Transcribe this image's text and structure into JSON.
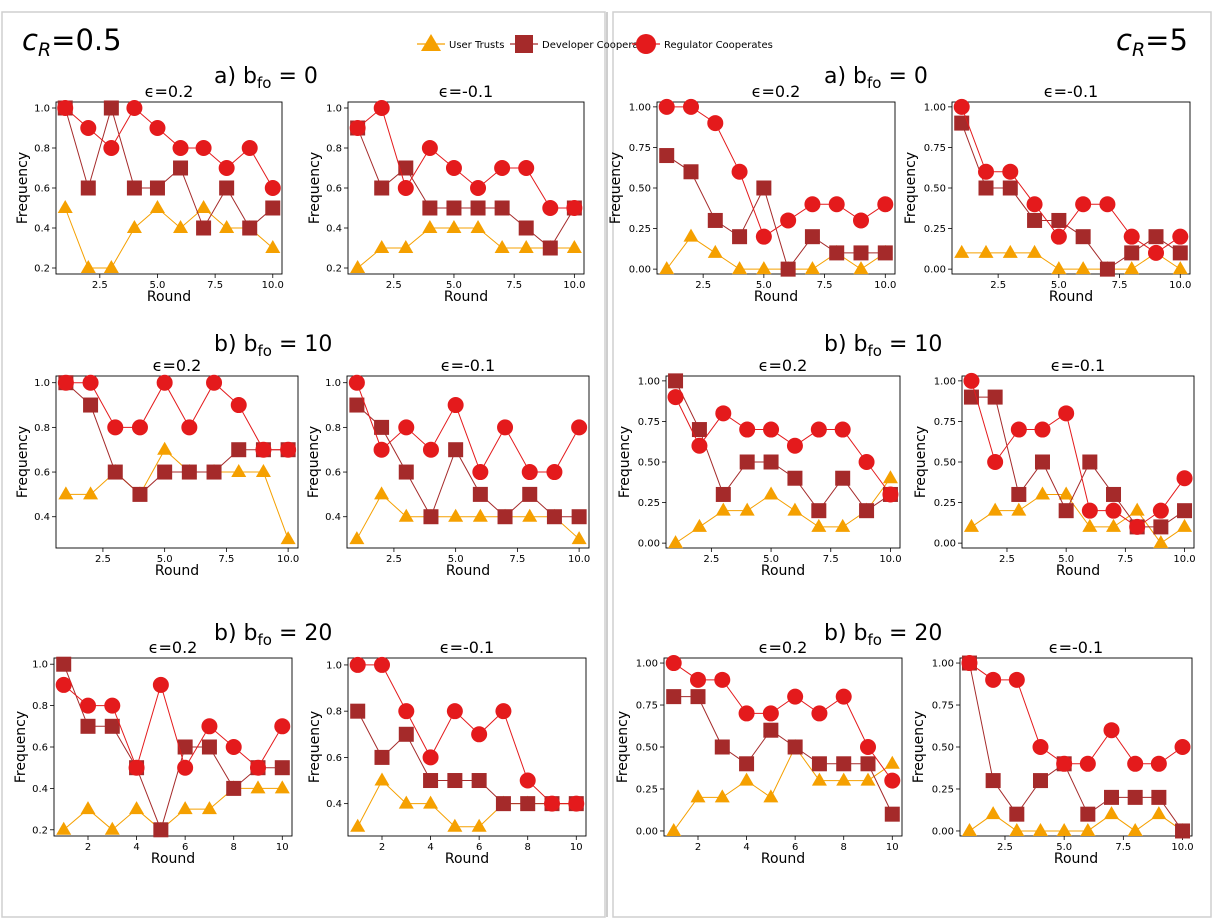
{
  "legend": {
    "items": [
      {
        "label": "User Trusts",
        "marker": "triangle",
        "color": "#f5a000"
      },
      {
        "label": "Developer Cooperates",
        "marker": "square",
        "color": "#a52a2a"
      },
      {
        "label": "Regulator Cooperates",
        "marker": "circle",
        "color": "#e41a1c"
      }
    ]
  },
  "colors": {
    "user": "#f5a000",
    "developer": "#a52a2a",
    "regulator": "#e41a1c"
  },
  "columns": [
    {
      "cr_label": "c",
      "cr_sub": "R",
      "cr_value": "=0.5"
    },
    {
      "cr_label": "c",
      "cr_sub": "R",
      "cr_value": "=5"
    }
  ],
  "row_titles": [
    {
      "prefix": "a) b",
      "sub": "fo",
      "suffix": " = 0"
    },
    {
      "prefix": "b) b",
      "sub": "fo",
      "suffix": " = 10"
    },
    {
      "prefix": "b) b",
      "sub": "fo",
      "suffix": " = 20"
    }
  ],
  "chart_data": [
    {
      "type": "line",
      "panel": "cR=0.5, bfo=0, eps=0.2",
      "title": "ϵ=0.2",
      "xlabel": "Round",
      "ylabel": "Frequency",
      "xlim": [
        0.6,
        10.4
      ],
      "ylim": [
        0.17,
        1.03
      ],
      "xticks": [
        2.5,
        5.0,
        7.5,
        10.0
      ],
      "xtick_labels": [
        "2.5",
        "5.0",
        "7.5",
        "10.0"
      ],
      "yticks": [
        0.2,
        0.4,
        0.6,
        0.8,
        1.0
      ],
      "ytick_labels": [
        "0.2",
        "0.4",
        "0.6",
        "0.8",
        "1.0"
      ],
      "x": [
        1,
        2,
        3,
        4,
        5,
        6,
        7,
        8,
        9,
        10
      ],
      "series": [
        {
          "name": "User Trusts",
          "values": [
            0.5,
            0.2,
            0.2,
            0.4,
            0.5,
            0.4,
            0.5,
            0.4,
            0.4,
            0.3
          ]
        },
        {
          "name": "Developer Cooperates",
          "values": [
            1.0,
            0.6,
            1.0,
            0.6,
            0.6,
            0.7,
            0.4,
            0.6,
            0.4,
            0.5
          ]
        },
        {
          "name": "Regulator Cooperates",
          "values": [
            1.0,
            0.9,
            0.8,
            1.0,
            0.9,
            0.8,
            0.8,
            0.7,
            0.8,
            0.6
          ]
        }
      ]
    },
    {
      "type": "line",
      "panel": "cR=0.5, bfo=0, eps=-0.1",
      "title": "ϵ=-0.1",
      "xlabel": "Round",
      "ylabel": "Frequency",
      "xlim": [
        0.6,
        10.4
      ],
      "ylim": [
        0.17,
        1.03
      ],
      "xticks": [
        2.5,
        5.0,
        7.5,
        10.0
      ],
      "xtick_labels": [
        "2.5",
        "5.0",
        "7.5",
        "10.0"
      ],
      "yticks": [
        0.2,
        0.4,
        0.6,
        0.8,
        1.0
      ],
      "ytick_labels": [
        "0.2",
        "0.4",
        "0.6",
        "0.8",
        "1.0"
      ],
      "x": [
        1,
        2,
        3,
        4,
        5,
        6,
        7,
        8,
        9,
        10
      ],
      "series": [
        {
          "name": "User Trusts",
          "values": [
            0.2,
            0.3,
            0.3,
            0.4,
            0.4,
            0.4,
            0.3,
            0.3,
            0.3,
            0.3
          ]
        },
        {
          "name": "Developer Cooperates",
          "values": [
            0.9,
            0.6,
            0.7,
            0.5,
            0.5,
            0.5,
            0.5,
            0.4,
            0.3,
            0.5
          ]
        },
        {
          "name": "Regulator Cooperates",
          "values": [
            0.9,
            1.0,
            0.6,
            0.8,
            0.7,
            0.6,
            0.7,
            0.7,
            0.5,
            0.5
          ]
        }
      ]
    },
    {
      "type": "line",
      "panel": "cR=5, bfo=0, eps=0.2",
      "title": "ϵ=0.2",
      "xlabel": "Round",
      "ylabel": "Frequency",
      "xlim": [
        0.6,
        10.4
      ],
      "ylim": [
        -0.03,
        1.03
      ],
      "xticks": [
        2.5,
        5.0,
        7.5,
        10.0
      ],
      "xtick_labels": [
        "2.5",
        "5.0",
        "7.5",
        "10.0"
      ],
      "yticks": [
        0.0,
        0.25,
        0.5,
        0.75,
        1.0
      ],
      "ytick_labels": [
        "0.00",
        "0.25",
        "0.50",
        "0.75",
        "1.00"
      ],
      "x": [
        1,
        2,
        3,
        4,
        5,
        6,
        7,
        8,
        9,
        10
      ],
      "series": [
        {
          "name": "User Trusts",
          "values": [
            0.0,
            0.2,
            0.1,
            0.0,
            0.0,
            0.0,
            0.0,
            0.1,
            0.0,
            0.1
          ]
        },
        {
          "name": "Developer Cooperates",
          "values": [
            0.7,
            0.6,
            0.3,
            0.2,
            0.5,
            0.0,
            0.2,
            0.1,
            0.1,
            0.1
          ]
        },
        {
          "name": "Regulator Cooperates",
          "values": [
            1.0,
            1.0,
            0.9,
            0.6,
            0.2,
            0.3,
            0.4,
            0.4,
            0.3,
            0.4
          ]
        }
      ]
    },
    {
      "type": "line",
      "panel": "cR=5, bfo=0, eps=-0.1",
      "title": "ϵ=-0.1",
      "xlabel": "Round",
      "ylabel": "Frequency",
      "xlim": [
        0.6,
        10.4
      ],
      "ylim": [
        -0.03,
        1.03
      ],
      "xticks": [
        2.5,
        5.0,
        7.5,
        10.0
      ],
      "xtick_labels": [
        "2.5",
        "5.0",
        "7.5",
        "10.0"
      ],
      "yticks": [
        0.0,
        0.25,
        0.5,
        0.75,
        1.0
      ],
      "ytick_labels": [
        "0.00",
        "0.25",
        "0.50",
        "0.75",
        "1.00"
      ],
      "x": [
        1,
        2,
        3,
        4,
        5,
        6,
        7,
        8,
        9,
        10
      ],
      "series": [
        {
          "name": "User Trusts",
          "values": [
            0.1,
            0.1,
            0.1,
            0.1,
            0.0,
            0.0,
            0.0,
            0.0,
            0.1,
            0.0
          ]
        },
        {
          "name": "Developer Cooperates",
          "values": [
            0.9,
            0.5,
            0.5,
            0.3,
            0.3,
            0.2,
            0.0,
            0.1,
            0.2,
            0.1
          ]
        },
        {
          "name": "Regulator Cooperates",
          "values": [
            1.0,
            0.6,
            0.6,
            0.4,
            0.2,
            0.4,
            0.4,
            0.2,
            0.1,
            0.2
          ]
        }
      ]
    },
    {
      "type": "line",
      "panel": "cR=0.5, bfo=10, eps=0.2",
      "title": "ϵ=0.2",
      "xlabel": "Round",
      "ylabel": "Frequency",
      "xlim": [
        0.6,
        10.4
      ],
      "ylim": [
        0.26,
        1.03
      ],
      "xticks": [
        2.5,
        5.0,
        7.5,
        10.0
      ],
      "xtick_labels": [
        "2.5",
        "5.0",
        "7.5",
        "10.0"
      ],
      "yticks": [
        0.4,
        0.6,
        0.8,
        1.0
      ],
      "ytick_labels": [
        "0.4",
        "0.6",
        "0.8",
        "1.0"
      ],
      "x": [
        1,
        2,
        3,
        4,
        5,
        6,
        7,
        8,
        9,
        10
      ],
      "series": [
        {
          "name": "User Trusts",
          "values": [
            0.5,
            0.5,
            0.6,
            0.5,
            0.7,
            0.6,
            0.6,
            0.6,
            0.6,
            0.3
          ]
        },
        {
          "name": "Developer Cooperates",
          "values": [
            1.0,
            0.9,
            0.6,
            0.5,
            0.6,
            0.6,
            0.6,
            0.7,
            0.7,
            0.7
          ]
        },
        {
          "name": "Regulator Cooperates",
          "values": [
            1.0,
            1.0,
            0.8,
            0.8,
            1.0,
            0.8,
            1.0,
            0.9,
            0.7,
            0.7
          ]
        }
      ]
    },
    {
      "type": "line",
      "panel": "cR=0.5, bfo=10, eps=-0.1",
      "title": "ϵ=-0.1",
      "xlabel": "Round",
      "ylabel": "Frequency",
      "xlim": [
        0.6,
        10.4
      ],
      "ylim": [
        0.26,
        1.03
      ],
      "xticks": [
        2.5,
        5.0,
        7.5,
        10.0
      ],
      "xtick_labels": [
        "2.5",
        "5.0",
        "7.5",
        "10.0"
      ],
      "yticks": [
        0.4,
        0.6,
        0.8,
        1.0
      ],
      "ytick_labels": [
        "0.4",
        "0.6",
        "0.8",
        "1.0"
      ],
      "x": [
        1,
        2,
        3,
        4,
        5,
        6,
        7,
        8,
        9,
        10
      ],
      "series": [
        {
          "name": "User Trusts",
          "values": [
            0.3,
            0.5,
            0.4,
            0.4,
            0.4,
            0.4,
            0.4,
            0.4,
            0.4,
            0.3
          ]
        },
        {
          "name": "Developer Cooperates",
          "values": [
            0.9,
            0.8,
            0.6,
            0.4,
            0.7,
            0.5,
            0.4,
            0.5,
            0.4,
            0.4
          ]
        },
        {
          "name": "Regulator Cooperates",
          "values": [
            1.0,
            0.7,
            0.8,
            0.7,
            0.9,
            0.6,
            0.8,
            0.6,
            0.6,
            0.8
          ]
        }
      ]
    },
    {
      "type": "line",
      "panel": "cR=5, bfo=10, eps=0.2",
      "title": "ϵ=0.2",
      "xlabel": "Round",
      "ylabel": "Frequency",
      "xlim": [
        0.6,
        10.4
      ],
      "ylim": [
        -0.03,
        1.03
      ],
      "xticks": [
        2.5,
        5.0,
        7.5,
        10.0
      ],
      "xtick_labels": [
        "2.5",
        "5.0",
        "7.5",
        "10.0"
      ],
      "yticks": [
        0.0,
        0.25,
        0.5,
        0.75,
        1.0
      ],
      "ytick_labels": [
        "0.00",
        "0.25",
        "0.50",
        "0.75",
        "1.00"
      ],
      "x": [
        1,
        2,
        3,
        4,
        5,
        6,
        7,
        8,
        9,
        10
      ],
      "series": [
        {
          "name": "User Trusts",
          "values": [
            0.0,
            0.1,
            0.2,
            0.2,
            0.3,
            0.2,
            0.1,
            0.1,
            0.2,
            0.4
          ]
        },
        {
          "name": "Developer Cooperates",
          "values": [
            1.0,
            0.7,
            0.3,
            0.5,
            0.5,
            0.4,
            0.2,
            0.4,
            0.2,
            0.3
          ]
        },
        {
          "name": "Regulator Cooperates",
          "values": [
            0.9,
            0.6,
            0.8,
            0.7,
            0.7,
            0.6,
            0.7,
            0.7,
            0.5,
            0.3
          ]
        }
      ]
    },
    {
      "type": "line",
      "panel": "cR=5, bfo=10, eps=-0.1",
      "title": "ϵ=-0.1",
      "xlabel": "Round",
      "ylabel": "Frequency",
      "xlim": [
        0.6,
        10.4
      ],
      "ylim": [
        -0.03,
        1.03
      ],
      "xticks": [
        2.5,
        5.0,
        7.5,
        10.0
      ],
      "xtick_labels": [
        "2.5",
        "5.0",
        "7.5",
        "10.0"
      ],
      "yticks": [
        0.0,
        0.25,
        0.5,
        0.75,
        1.0
      ],
      "ytick_labels": [
        "0.00",
        "0.25",
        "0.50",
        "0.75",
        "1.00"
      ],
      "x": [
        1,
        2,
        3,
        4,
        5,
        6,
        7,
        8,
        9,
        10
      ],
      "series": [
        {
          "name": "User Trusts",
          "values": [
            0.1,
            0.2,
            0.2,
            0.3,
            0.3,
            0.1,
            0.1,
            0.2,
            0.0,
            0.1
          ]
        },
        {
          "name": "Developer Cooperates",
          "values": [
            0.9,
            0.9,
            0.3,
            0.5,
            0.2,
            0.5,
            0.3,
            0.1,
            0.1,
            0.2
          ]
        },
        {
          "name": "Regulator Cooperates",
          "values": [
            1.0,
            0.5,
            0.7,
            0.7,
            0.8,
            0.2,
            0.2,
            0.1,
            0.2,
            0.4
          ]
        }
      ]
    },
    {
      "type": "line",
      "panel": "cR=0.5, bfo=20, eps=0.2",
      "title": "ϵ=0.2",
      "xlabel": "Round",
      "ylabel": "Frequency",
      "xlim": [
        0.6,
        10.4
      ],
      "ylim": [
        0.17,
        1.03
      ],
      "xticks": [
        2,
        4,
        6,
        8,
        10
      ],
      "xtick_labels": [
        "2",
        "4",
        "6",
        "8",
        "10"
      ],
      "yticks": [
        0.2,
        0.4,
        0.6,
        0.8,
        1.0
      ],
      "ytick_labels": [
        "0.2",
        "0.4",
        "0.6",
        "0.8",
        "1.0"
      ],
      "x": [
        1,
        2,
        3,
        4,
        5,
        6,
        7,
        8,
        9,
        10
      ],
      "series": [
        {
          "name": "User Trusts",
          "values": [
            0.2,
            0.3,
            0.2,
            0.3,
            0.2,
            0.3,
            0.3,
            0.4,
            0.4,
            0.4
          ]
        },
        {
          "name": "Developer Cooperates",
          "values": [
            1.0,
            0.7,
            0.7,
            0.5,
            0.2,
            0.6,
            0.6,
            0.4,
            0.5,
            0.5
          ]
        },
        {
          "name": "Regulator Cooperates",
          "values": [
            0.9,
            0.8,
            0.8,
            0.5,
            0.9,
            0.5,
            0.7,
            0.6,
            0.5,
            0.7
          ]
        }
      ]
    },
    {
      "type": "line",
      "panel": "cR=0.5, bfo=20, eps=-0.1",
      "title": "ϵ=-0.1",
      "xlabel": "Round",
      "ylabel": "Frequency",
      "xlim": [
        0.6,
        10.4
      ],
      "ylim": [
        0.26,
        1.03
      ],
      "xticks": [
        2,
        4,
        6,
        8,
        10
      ],
      "xtick_labels": [
        "2",
        "4",
        "6",
        "8",
        "10"
      ],
      "yticks": [
        0.4,
        0.6,
        0.8,
        1.0
      ],
      "ytick_labels": [
        "0.4",
        "0.6",
        "0.8",
        "1.0"
      ],
      "x": [
        1,
        2,
        3,
        4,
        5,
        6,
        7,
        8,
        9,
        10
      ],
      "series": [
        {
          "name": "User Trusts",
          "values": [
            0.3,
            0.5,
            0.4,
            0.4,
            0.3,
            0.3,
            0.4,
            0.4,
            0.4,
            0.4
          ]
        },
        {
          "name": "Developer Cooperates",
          "values": [
            0.8,
            0.6,
            0.7,
            0.5,
            0.5,
            0.5,
            0.4,
            0.4,
            0.4,
            0.4
          ]
        },
        {
          "name": "Regulator Cooperates",
          "values": [
            1.0,
            1.0,
            0.8,
            0.6,
            0.8,
            0.7,
            0.8,
            0.5,
            0.4,
            0.4
          ]
        }
      ]
    },
    {
      "type": "line",
      "panel": "cR=5, bfo=20, eps=0.2",
      "title": "ϵ=0.2",
      "xlabel": "Round",
      "ylabel": "Frequency",
      "xlim": [
        0.6,
        10.4
      ],
      "ylim": [
        -0.03,
        1.03
      ],
      "xticks": [
        2,
        4,
        6,
        8,
        10
      ],
      "xtick_labels": [
        "2",
        "4",
        "6",
        "8",
        "10"
      ],
      "yticks": [
        0.0,
        0.25,
        0.5,
        0.75,
        1.0
      ],
      "ytick_labels": [
        "0.00",
        "0.25",
        "0.50",
        "0.75",
        "1.00"
      ],
      "x": [
        1,
        2,
        3,
        4,
        5,
        6,
        7,
        8,
        9,
        10
      ],
      "series": [
        {
          "name": "User Trusts",
          "values": [
            0.0,
            0.2,
            0.2,
            0.3,
            0.2,
            0.5,
            0.3,
            0.3,
            0.3,
            0.4
          ]
        },
        {
          "name": "Developer Cooperates",
          "values": [
            0.8,
            0.8,
            0.5,
            0.4,
            0.6,
            0.5,
            0.4,
            0.4,
            0.4,
            0.1
          ]
        },
        {
          "name": "Regulator Cooperates",
          "values": [
            1.0,
            0.9,
            0.9,
            0.7,
            0.7,
            0.8,
            0.7,
            0.8,
            0.5,
            0.3
          ]
        }
      ]
    },
    {
      "type": "line",
      "panel": "cR=5, bfo=20, eps=-0.1",
      "title": "ϵ=-0.1",
      "xlabel": "Round",
      "ylabel": "Frequency",
      "xlim": [
        0.6,
        10.4
      ],
      "ylim": [
        -0.03,
        1.03
      ],
      "xticks": [
        2.5,
        5.0,
        7.5,
        10.0
      ],
      "xtick_labels": [
        "2.5",
        "5.0",
        "7.5",
        "10.0"
      ],
      "yticks": [
        0.0,
        0.25,
        0.5,
        0.75,
        1.0
      ],
      "ytick_labels": [
        "0.00",
        "0.25",
        "0.50",
        "0.75",
        "1.00"
      ],
      "x": [
        1,
        2,
        3,
        4,
        5,
        6,
        7,
        8,
        9,
        10
      ],
      "series": [
        {
          "name": "User Trusts",
          "values": [
            0.0,
            0.1,
            0.0,
            0.0,
            0.0,
            0.0,
            0.1,
            0.0,
            0.1,
            0.0
          ]
        },
        {
          "name": "Developer Cooperates",
          "values": [
            1.0,
            0.3,
            0.1,
            0.3,
            0.4,
            0.1,
            0.2,
            0.2,
            0.2,
            0.0
          ]
        },
        {
          "name": "Regulator Cooperates",
          "values": [
            1.0,
            0.9,
            0.9,
            0.5,
            0.4,
            0.4,
            0.6,
            0.4,
            0.4,
            0.5
          ]
        }
      ]
    }
  ]
}
